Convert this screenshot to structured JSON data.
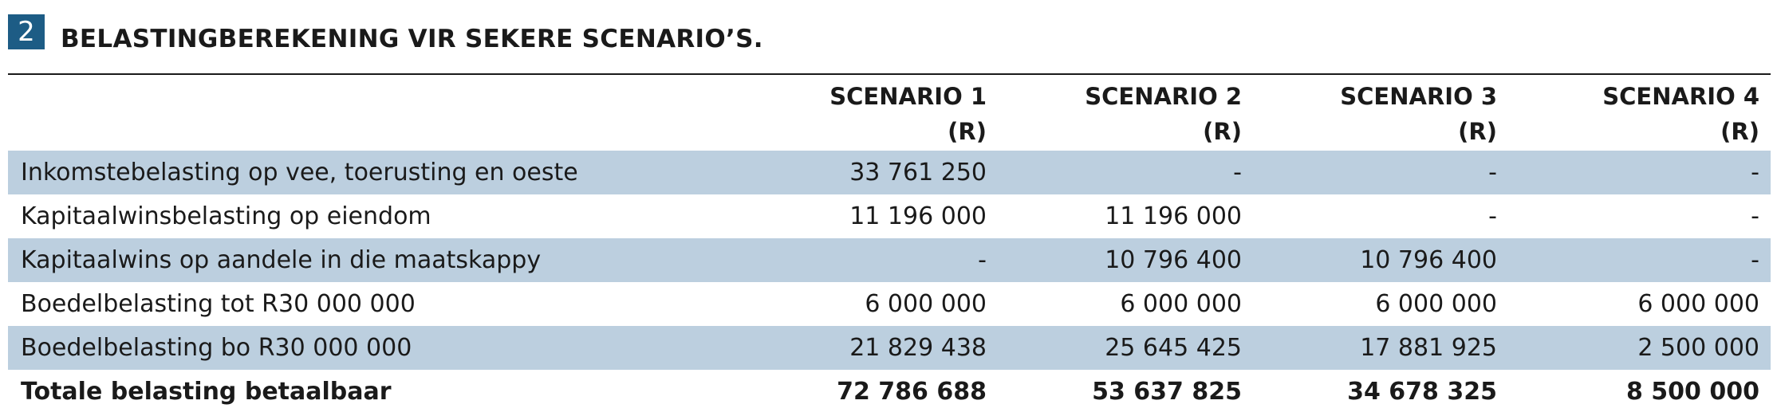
{
  "heading": {
    "number": "2",
    "title": "BELASTINGBEREKENING VIR SEKERE SCENARIO’S."
  },
  "table": {
    "columns": [
      {
        "name": "SCENARIO 1",
        "unit": "(R)"
      },
      {
        "name": "SCENARIO 2",
        "unit": "(R)"
      },
      {
        "name": "SCENARIO 3",
        "unit": "(R)"
      },
      {
        "name": "SCENARIO 4",
        "unit": "(R)"
      }
    ],
    "rows": [
      {
        "label": "Inkomstebelasting op vee, toerusting en oeste",
        "values": [
          "33 761 250",
          "-",
          "-",
          "-"
        ]
      },
      {
        "label": "Kapitaalwinsbelasting op eiendom",
        "values": [
          "11 196 000",
          "11 196 000",
          "-",
          "-"
        ]
      },
      {
        "label": "Kapitaalwins op aandele in die maatskappy",
        "values": [
          "-",
          "10 796 400",
          "10 796 400",
          "-"
        ]
      },
      {
        "label": "Boedelbelasting tot R30 000 000",
        "values": [
          "6 000 000",
          "6 000 000",
          "6 000 000",
          "6 000 000"
        ]
      },
      {
        "label": "Boedelbelasting bo R30 000 000",
        "values": [
          "21 829 438",
          "25 645 425",
          "17 881 925",
          "2 500 000"
        ]
      }
    ],
    "total": {
      "label": "Totale belasting betaalbaar",
      "values": [
        "72 786 688",
        "53 637 825",
        "34 678 325",
        "8 500 000"
      ]
    }
  },
  "colors": {
    "badge": "#1d5c85",
    "row_shade": "#bccfdf",
    "text": "#1a1a1a"
  }
}
